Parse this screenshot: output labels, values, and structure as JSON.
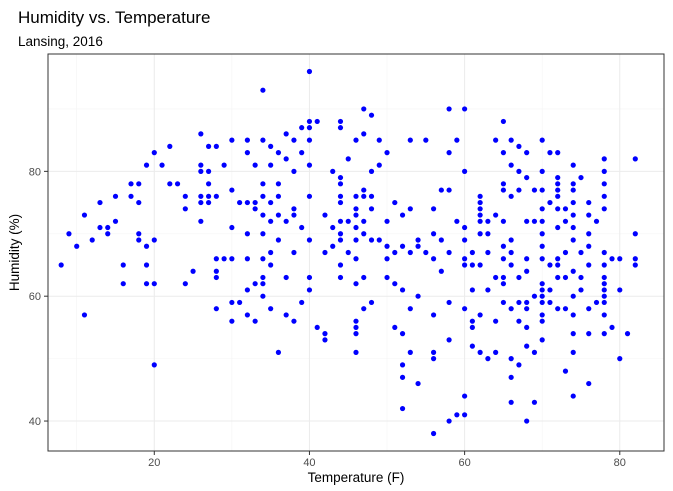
{
  "chart_data": {
    "type": "scatter",
    "title": "Humidity vs. Temperature",
    "subtitle": "Lansing, 2016",
    "xlabel": "Temperature (F)",
    "ylabel": "Humidity (%)",
    "xlim": [
      6.3,
      85.7
    ],
    "ylim": [
      35.2,
      98.8
    ],
    "xticks": [
      20,
      40,
      60,
      80
    ],
    "yticks": [
      40,
      60,
      80
    ],
    "grid": true,
    "point_color": "#0000ff",
    "points": [
      [
        8,
        65
      ],
      [
        9,
        70
      ],
      [
        10,
        68
      ],
      [
        11,
        73
      ],
      [
        11,
        57
      ],
      [
        12,
        69
      ],
      [
        13,
        71
      ],
      [
        13,
        75
      ],
      [
        14,
        70
      ],
      [
        14,
        71
      ],
      [
        15,
        76
      ],
      [
        15,
        72
      ],
      [
        16,
        65
      ],
      [
        16,
        62
      ],
      [
        17,
        78
      ],
      [
        17,
        76
      ],
      [
        18,
        78
      ],
      [
        18,
        75
      ],
      [
        18,
        70
      ],
      [
        18,
        69
      ],
      [
        19,
        68
      ],
      [
        19,
        65
      ],
      [
        19,
        81
      ],
      [
        19,
        62
      ],
      [
        20,
        83
      ],
      [
        20,
        69
      ],
      [
        20,
        62
      ],
      [
        20,
        49
      ],
      [
        21,
        81
      ],
      [
        22,
        84
      ],
      [
        22,
        78
      ],
      [
        23,
        78
      ],
      [
        24,
        76
      ],
      [
        24,
        74
      ],
      [
        24,
        62
      ],
      [
        25,
        64
      ],
      [
        26,
        86
      ],
      [
        26,
        81
      ],
      [
        26,
        80
      ],
      [
        26,
        76
      ],
      [
        26,
        75
      ],
      [
        26,
        72
      ],
      [
        27,
        84
      ],
      [
        27,
        80
      ],
      [
        27,
        78
      ],
      [
        27,
        76
      ],
      [
        27,
        75
      ],
      [
        28,
        84
      ],
      [
        28,
        76
      ],
      [
        28,
        66
      ],
      [
        28,
        64
      ],
      [
        28,
        63
      ],
      [
        28,
        58
      ],
      [
        29,
        81
      ],
      [
        29,
        66
      ],
      [
        30,
        85
      ],
      [
        30,
        77
      ],
      [
        30,
        71
      ],
      [
        30,
        66
      ],
      [
        30,
        59
      ],
      [
        30,
        56
      ],
      [
        31,
        75
      ],
      [
        31,
        59
      ],
      [
        32,
        85
      ],
      [
        32,
        83
      ],
      [
        32,
        75
      ],
      [
        32,
        70
      ],
      [
        32,
        66
      ],
      [
        32,
        61
      ],
      [
        32,
        57
      ],
      [
        33,
        81
      ],
      [
        33,
        75
      ],
      [
        33,
        74
      ],
      [
        33,
        62
      ],
      [
        33,
        56
      ],
      [
        34,
        93
      ],
      [
        34,
        85
      ],
      [
        34,
        78
      ],
      [
        34,
        76
      ],
      [
        34,
        73
      ],
      [
        34,
        70
      ],
      [
        34,
        66
      ],
      [
        34,
        63
      ],
      [
        34,
        62
      ],
      [
        34,
        60
      ],
      [
        35,
        84
      ],
      [
        35,
        81
      ],
      [
        35,
        75
      ],
      [
        35,
        72
      ],
      [
        35,
        67
      ],
      [
        35,
        65
      ],
      [
        35,
        58
      ],
      [
        36,
        83
      ],
      [
        36,
        78
      ],
      [
        36,
        76
      ],
      [
        36,
        73
      ],
      [
        36,
        69
      ],
      [
        36,
        51
      ],
      [
        37,
        86
      ],
      [
        37,
        82
      ],
      [
        37,
        72
      ],
      [
        37,
        63
      ],
      [
        37,
        57
      ],
      [
        38,
        85
      ],
      [
        38,
        80
      ],
      [
        38,
        74
      ],
      [
        38,
        73
      ],
      [
        38,
        67
      ],
      [
        38,
        56
      ],
      [
        39,
        87
      ],
      [
        39,
        83
      ],
      [
        39,
        71
      ],
      [
        39,
        59
      ],
      [
        40,
        96
      ],
      [
        40,
        88
      ],
      [
        40,
        87
      ],
      [
        40,
        85
      ],
      [
        40,
        81
      ],
      [
        40,
        76
      ],
      [
        40,
        69
      ],
      [
        40,
        63
      ],
      [
        40,
        61
      ],
      [
        41,
        88
      ],
      [
        41,
        55
      ],
      [
        42,
        54
      ],
      [
        42,
        53
      ],
      [
        42,
        73
      ],
      [
        42,
        67
      ],
      [
        43,
        80
      ],
      [
        43,
        71
      ],
      [
        43,
        68
      ],
      [
        44,
        88
      ],
      [
        44,
        87
      ],
      [
        44,
        79
      ],
      [
        44,
        78
      ],
      [
        44,
        76
      ],
      [
        44,
        75
      ],
      [
        44,
        72
      ],
      [
        44,
        70
      ],
      [
        44,
        69
      ],
      [
        44,
        65
      ],
      [
        44,
        63
      ],
      [
        45,
        67
      ],
      [
        45,
        72
      ],
      [
        45,
        82
      ],
      [
        46,
        85
      ],
      [
        46,
        76
      ],
      [
        46,
        74
      ],
      [
        46,
        73
      ],
      [
        46,
        71
      ],
      [
        46,
        69
      ],
      [
        46,
        66
      ],
      [
        46,
        62
      ],
      [
        46,
        56
      ],
      [
        46,
        55
      ],
      [
        46,
        54
      ],
      [
        46,
        51
      ],
      [
        47,
        90
      ],
      [
        47,
        86
      ],
      [
        47,
        77
      ],
      [
        47,
        76
      ],
      [
        47,
        72
      ],
      [
        47,
        70
      ],
      [
        47,
        63
      ],
      [
        47,
        58
      ],
      [
        48,
        89
      ],
      [
        48,
        80
      ],
      [
        48,
        76
      ],
      [
        48,
        74
      ],
      [
        48,
        69
      ],
      [
        48,
        59
      ],
      [
        49,
        85
      ],
      [
        49,
        81
      ],
      [
        49,
        69
      ],
      [
        50,
        83
      ],
      [
        50,
        72
      ],
      [
        50,
        68
      ],
      [
        50,
        66
      ],
      [
        50,
        63
      ],
      [
        51,
        75
      ],
      [
        51,
        67
      ],
      [
        51,
        55
      ],
      [
        51,
        62
      ],
      [
        52,
        73
      ],
      [
        52,
        68
      ],
      [
        52,
        61
      ],
      [
        52,
        54
      ],
      [
        52,
        49
      ],
      [
        52,
        47
      ],
      [
        52,
        42
      ],
      [
        53,
        85
      ],
      [
        53,
        74
      ],
      [
        53,
        67
      ],
      [
        53,
        58
      ],
      [
        53,
        51
      ],
      [
        54,
        69
      ],
      [
        54,
        68
      ],
      [
        54,
        60
      ],
      [
        54,
        46
      ],
      [
        55,
        85
      ],
      [
        55,
        67
      ],
      [
        56,
        74
      ],
      [
        56,
        70
      ],
      [
        56,
        66
      ],
      [
        56,
        57
      ],
      [
        56,
        51
      ],
      [
        56,
        50
      ],
      [
        56,
        38
      ],
      [
        57,
        77
      ],
      [
        57,
        69
      ],
      [
        57,
        64
      ],
      [
        58,
        90
      ],
      [
        58,
        83
      ],
      [
        58,
        77
      ],
      [
        58,
        67
      ],
      [
        58,
        59
      ],
      [
        58,
        53
      ],
      [
        58,
        40
      ],
      [
        59,
        85
      ],
      [
        59,
        72
      ],
      [
        59,
        41
      ],
      [
        60,
        90
      ],
      [
        60,
        80
      ],
      [
        60,
        71
      ],
      [
        60,
        69
      ],
      [
        60,
        66
      ],
      [
        60,
        65
      ],
      [
        60,
        58
      ],
      [
        60,
        44
      ],
      [
        60,
        41
      ],
      [
        61,
        67
      ],
      [
        61,
        65
      ],
      [
        61,
        61
      ],
      [
        61,
        56
      ],
      [
        61,
        55
      ],
      [
        61,
        52
      ],
      [
        62,
        76
      ],
      [
        62,
        75
      ],
      [
        62,
        74
      ],
      [
        62,
        73
      ],
      [
        62,
        72
      ],
      [
        62,
        70
      ],
      [
        62,
        65
      ],
      [
        62,
        57
      ],
      [
        62,
        51
      ],
      [
        63,
        72
      ],
      [
        63,
        70
      ],
      [
        63,
        67
      ],
      [
        63,
        61
      ],
      [
        63,
        50
      ],
      [
        64,
        85
      ],
      [
        64,
        73
      ],
      [
        64,
        63
      ],
      [
        64,
        56
      ],
      [
        64,
        51
      ],
      [
        65,
        88
      ],
      [
        65,
        83
      ],
      [
        65,
        78
      ],
      [
        65,
        77
      ],
      [
        65,
        72
      ],
      [
        65,
        68
      ],
      [
        65,
        66
      ],
      [
        65,
        63
      ],
      [
        65,
        62
      ],
      [
        65,
        59
      ],
      [
        66,
        85
      ],
      [
        66,
        81
      ],
      [
        66,
        76
      ],
      [
        66,
        69
      ],
      [
        66,
        67
      ],
      [
        66,
        65
      ],
      [
        66,
        58
      ],
      [
        66,
        50
      ],
      [
        66,
        47
      ],
      [
        66,
        43
      ],
      [
        67,
        84
      ],
      [
        67,
        80
      ],
      [
        67,
        77
      ],
      [
        67,
        63
      ],
      [
        67,
        59
      ],
      [
        67,
        56
      ],
      [
        67,
        49
      ],
      [
        68,
        83
      ],
      [
        68,
        79
      ],
      [
        68,
        72
      ],
      [
        68,
        66
      ],
      [
        68,
        64
      ],
      [
        68,
        59
      ],
      [
        68,
        58
      ],
      [
        68,
        55
      ],
      [
        68,
        52
      ],
      [
        68,
        40
      ],
      [
        69,
        77
      ],
      [
        69,
        72
      ],
      [
        69,
        60
      ],
      [
        69,
        51
      ],
      [
        69,
        43
      ],
      [
        70,
        85
      ],
      [
        70,
        80
      ],
      [
        70,
        77
      ],
      [
        70,
        74
      ],
      [
        70,
        72
      ],
      [
        70,
        70
      ],
      [
        70,
        68
      ],
      [
        70,
        66
      ],
      [
        70,
        62
      ],
      [
        70,
        61
      ],
      [
        70,
        60
      ],
      [
        70,
        59
      ],
      [
        70,
        57
      ],
      [
        70,
        56
      ],
      [
        70,
        53
      ],
      [
        71,
        83
      ],
      [
        71,
        75
      ],
      [
        71,
        65
      ],
      [
        71,
        61
      ],
      [
        71,
        59
      ],
      [
        72,
        83
      ],
      [
        72,
        79
      ],
      [
        72,
        78
      ],
      [
        72,
        77
      ],
      [
        72,
        76
      ],
      [
        72,
        74
      ],
      [
        72,
        71
      ],
      [
        72,
        66
      ],
      [
        72,
        65
      ],
      [
        72,
        63
      ],
      [
        72,
        58
      ],
      [
        73,
        74
      ],
      [
        73,
        72
      ],
      [
        73,
        67
      ],
      [
        73,
        63
      ],
      [
        73,
        58
      ],
      [
        73,
        48
      ],
      [
        74,
        81
      ],
      [
        74,
        78
      ],
      [
        74,
        77
      ],
      [
        74,
        75
      ],
      [
        74,
        73
      ],
      [
        74,
        71
      ],
      [
        74,
        69
      ],
      [
        74,
        64
      ],
      [
        74,
        60
      ],
      [
        74,
        57
      ],
      [
        74,
        54
      ],
      [
        74,
        51
      ],
      [
        74,
        44
      ],
      [
        75,
        79
      ],
      [
        75,
        67
      ],
      [
        75,
        63
      ],
      [
        75,
        61
      ],
      [
        76,
        75
      ],
      [
        76,
        73
      ],
      [
        76,
        70
      ],
      [
        76,
        68
      ],
      [
        76,
        65
      ],
      [
        76,
        58
      ],
      [
        76,
        54
      ],
      [
        76,
        46
      ],
      [
        77,
        72
      ],
      [
        77,
        59
      ],
      [
        78,
        82
      ],
      [
        78,
        80
      ],
      [
        78,
        78
      ],
      [
        78,
        76
      ],
      [
        78,
        74
      ],
      [
        78,
        67
      ],
      [
        78,
        65
      ],
      [
        78,
        63
      ],
      [
        78,
        62
      ],
      [
        78,
        61
      ],
      [
        78,
        60
      ],
      [
        78,
        59
      ],
      [
        78,
        57
      ],
      [
        78,
        54
      ],
      [
        79,
        66
      ],
      [
        79,
        55
      ],
      [
        80,
        61
      ],
      [
        80,
        50
      ],
      [
        80,
        66
      ],
      [
        81,
        54
      ],
      [
        82,
        82
      ],
      [
        82,
        70
      ],
      [
        82,
        66
      ],
      [
        82,
        65
      ]
    ]
  }
}
